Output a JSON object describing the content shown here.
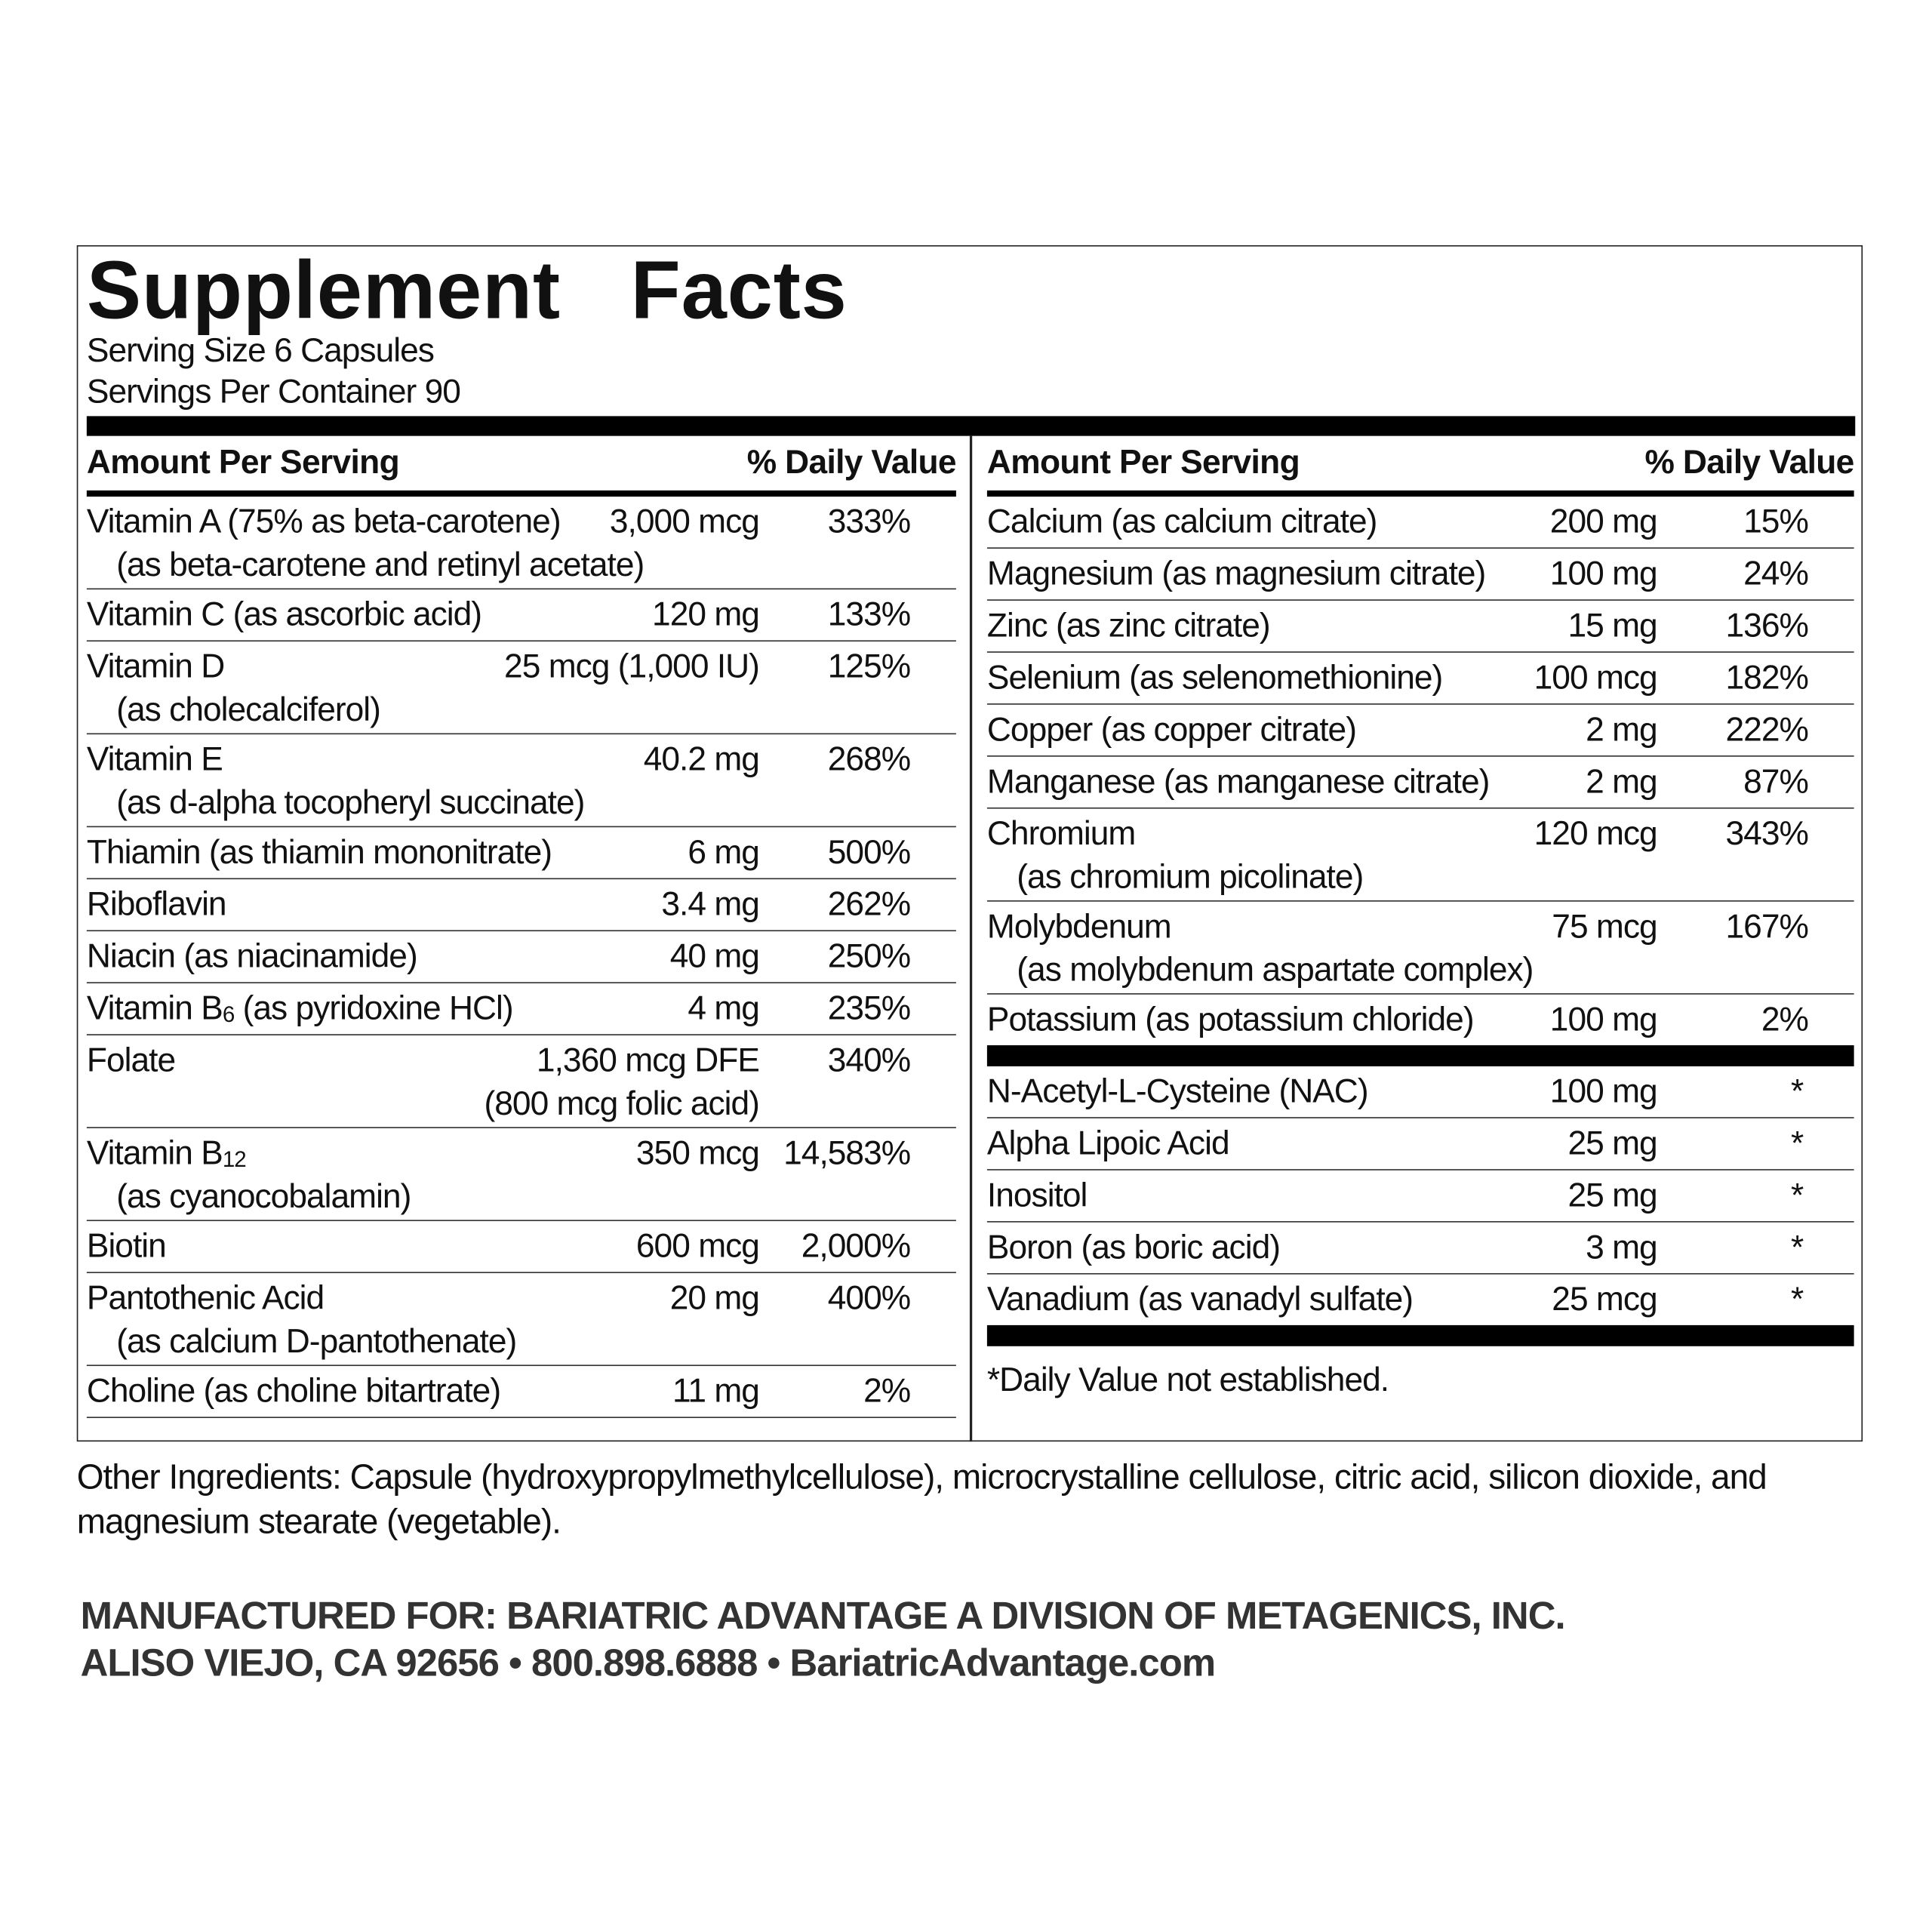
{
  "title": "Supplement   Facts",
  "serving_size": "Serving Size 6 Capsules",
  "servings_per_container": "Servings Per Container 90",
  "left": {
    "header_amount": "Amount Per Serving",
    "header_dv": "% Daily Value",
    "rows": [
      {
        "name": "Vitamin A (75% as beta-carotene)",
        "detail": "(as beta-carotene and retinyl acetate)",
        "amount": "3,000 mcg",
        "dv": "333%"
      },
      {
        "name": "Vitamin C (as ascorbic acid)",
        "amount": "120 mg",
        "dv": "133%"
      },
      {
        "name": "Vitamin D",
        "detail": "(as cholecalciferol)",
        "amount": "25 mcg (1,000 IU)",
        "dv": "125%"
      },
      {
        "name": "Vitamin E",
        "detail": "(as d-alpha tocopheryl succinate)",
        "amount": "40.2 mg",
        "dv": "268%"
      },
      {
        "name": "Thiamin (as thiamin mononitrate)",
        "amount": "6 mg",
        "dv": "500%"
      },
      {
        "name": "Riboflavin",
        "amount": "3.4 mg",
        "dv": "262%"
      },
      {
        "name": "Niacin (as niacinamide)",
        "amount": "40 mg",
        "dv": "250%"
      },
      {
        "name": "Vitamin B",
        "sub": "6",
        "name_rest": " (as pyridoxine HCl)",
        "amount": "4 mg",
        "dv": "235%"
      },
      {
        "name": "Folate",
        "amount": "1,360 mcg DFE",
        "amount_detail": "(800 mcg folic acid)",
        "dv": "340%"
      },
      {
        "name": "Vitamin B",
        "sub": "12",
        "detail": "(as cyanocobalamin)",
        "amount": "350 mcg",
        "dv": "14,583%"
      },
      {
        "name": "Biotin",
        "amount": "600 mcg",
        "dv": "2,000%"
      },
      {
        "name": "Pantothenic Acid",
        "detail": "(as calcium D-pantothenate)",
        "amount": "20 mg",
        "dv": "400%"
      },
      {
        "name": "Choline (as choline bitartrate)",
        "amount": "11 mg",
        "dv": "2%"
      }
    ]
  },
  "right": {
    "header_amount": "Amount Per Serving",
    "header_dv": "% Daily Value",
    "rows": [
      {
        "name": "Calcium (as calcium citrate)",
        "amount": "200 mg",
        "dv": "15%"
      },
      {
        "name": "Magnesium (as magnesium citrate)",
        "amount": "100 mg",
        "dv": "24%"
      },
      {
        "name": "Zinc (as zinc citrate)",
        "amount": "15 mg",
        "dv": "136%"
      },
      {
        "name": "Selenium (as selenomethionine)",
        "amount": "100 mcg",
        "dv": "182%"
      },
      {
        "name": "Copper (as copper citrate)",
        "amount": "2 mg",
        "dv": "222%"
      },
      {
        "name": "Manganese (as manganese citrate)",
        "amount": "2 mg",
        "dv": "87%"
      },
      {
        "name": "Chromium",
        "detail": "(as chromium picolinate)",
        "amount": "120 mcg",
        "dv": "343%"
      },
      {
        "name": "Molybdenum",
        "detail": "(as molybdenum aspartate complex)",
        "amount": "75 mcg",
        "dv": "167%"
      },
      {
        "name": "Potassium (as potassium chloride)",
        "amount": "100 mg",
        "dv": "2%"
      }
    ],
    "other_rows": [
      {
        "name": "N-Acetyl-L-Cysteine (NAC)",
        "amount": "100 mg",
        "dv": "*"
      },
      {
        "name": "Alpha Lipoic Acid",
        "amount": "25 mg",
        "dv": "*"
      },
      {
        "name": "Inositol",
        "amount": "25 mg",
        "dv": "*"
      },
      {
        "name": "Boron (as boric acid)",
        "amount": "3 mg",
        "dv": "*"
      },
      {
        "name": "Vanadium (as vanadyl sulfate)",
        "amount": "25 mcg",
        "dv": "*"
      }
    ],
    "footnote": "*Daily Value not established."
  },
  "other_ingredients": "Other Ingredients: Capsule (hydroxypropylmethylcellulose), microcrystalline cellulose, citric acid, silicon dioxide, and magnesium stearate (vegetable).",
  "manufacturer": [
    "MANUFACTURED FOR: BARIATRIC ADVANTAGE A DIVISION OF METAGENICS, INC.",
    "ALISO VIEJO, CA 92656 • 800.898.6888 • BariatricAdvantage.com"
  ]
}
